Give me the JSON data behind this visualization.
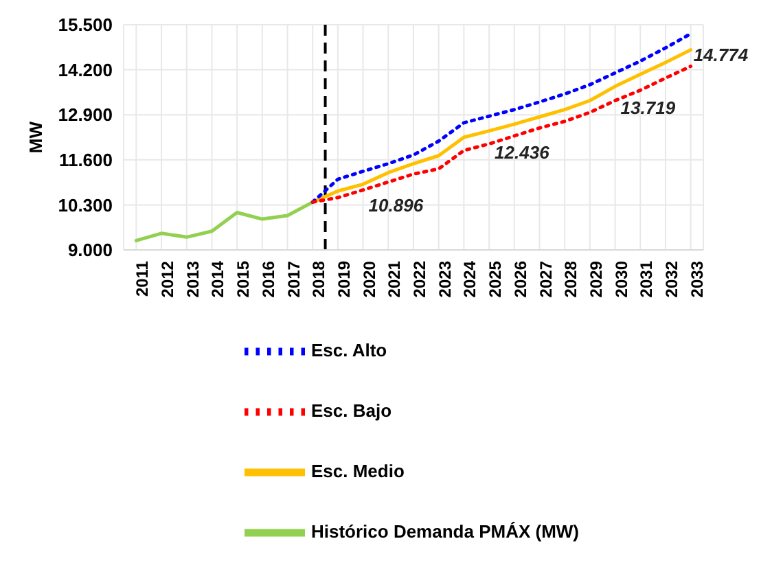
{
  "chart_data": {
    "type": "line",
    "ylabel": "MW",
    "x": [
      2011,
      2012,
      2013,
      2014,
      2015,
      2016,
      2017,
      2018,
      2019,
      2020,
      2021,
      2022,
      2023,
      2024,
      2025,
      2026,
      2027,
      2028,
      2029,
      2030,
      2031,
      2032,
      2033
    ],
    "xlim": [
      2010.5,
      2033.5
    ],
    "xticks": [
      2011,
      2012,
      2013,
      2014,
      2015,
      2016,
      2017,
      2018,
      2019,
      2020,
      2021,
      2022,
      2023,
      2024,
      2025,
      2026,
      2027,
      2028,
      2029,
      2030,
      2031,
      2032,
      2033
    ],
    "ylim": [
      9000,
      15500
    ],
    "yticks": [
      {
        "value": 9000,
        "label": "9.000"
      },
      {
        "value": 10300,
        "label": "10.300"
      },
      {
        "value": 11600,
        "label": "11.600"
      },
      {
        "value": 12900,
        "label": "12.900"
      },
      {
        "value": 14200,
        "label": "14.200"
      },
      {
        "value": 15500,
        "label": "15.500"
      }
    ],
    "grid": true,
    "legend": "bottom",
    "marker": "none",
    "ref_lines": [
      {
        "axis": "x",
        "value": 2018.5,
        "color": "#000000",
        "line_style": "dashed"
      }
    ],
    "series": [
      {
        "name": "Histórico Demanda PMÁX (MW)",
        "color": "#92d050",
        "line_style": "solid",
        "values": [
          9270,
          9480,
          9370,
          9540,
          10080,
          9890,
          9990,
          10380,
          null,
          null,
          null,
          null,
          null,
          null,
          null,
          null,
          null,
          null,
          null,
          null,
          null,
          null,
          null
        ]
      },
      {
        "name": "Esc. Medio",
        "color": "#ffc000",
        "line_style": "solid",
        "values": [
          null,
          null,
          null,
          null,
          null,
          null,
          null,
          10380,
          10700,
          10896,
          11230,
          11490,
          11720,
          12250,
          12436,
          12630,
          12840,
          13050,
          13310,
          13719,
          14070,
          14410,
          14774
        ],
        "value_labels": [
          null,
          null,
          null,
          null,
          null,
          null,
          null,
          null,
          null,
          "10.896",
          null,
          null,
          null,
          null,
          "12.436",
          null,
          null,
          null,
          null,
          "13.719",
          null,
          null,
          "14.774"
        ]
      },
      {
        "name": "Esc. Alto",
        "color": "#0000ff",
        "line_style": "dotted",
        "values": [
          null,
          null,
          null,
          null,
          null,
          null,
          null,
          10380,
          11040,
          11270,
          11490,
          11740,
          12140,
          12670,
          12860,
          13050,
          13270,
          13500,
          13770,
          14110,
          14450,
          14830,
          15240
        ]
      },
      {
        "name": "Esc. Bajo",
        "color": "#ff0000",
        "line_style": "dotted",
        "values": [
          null,
          null,
          null,
          null,
          null,
          null,
          null,
          10380,
          10510,
          10730,
          10960,
          11190,
          11340,
          11870,
          12060,
          12290,
          12520,
          12710,
          12970,
          13310,
          13610,
          13960,
          14300
        ]
      }
    ]
  }
}
